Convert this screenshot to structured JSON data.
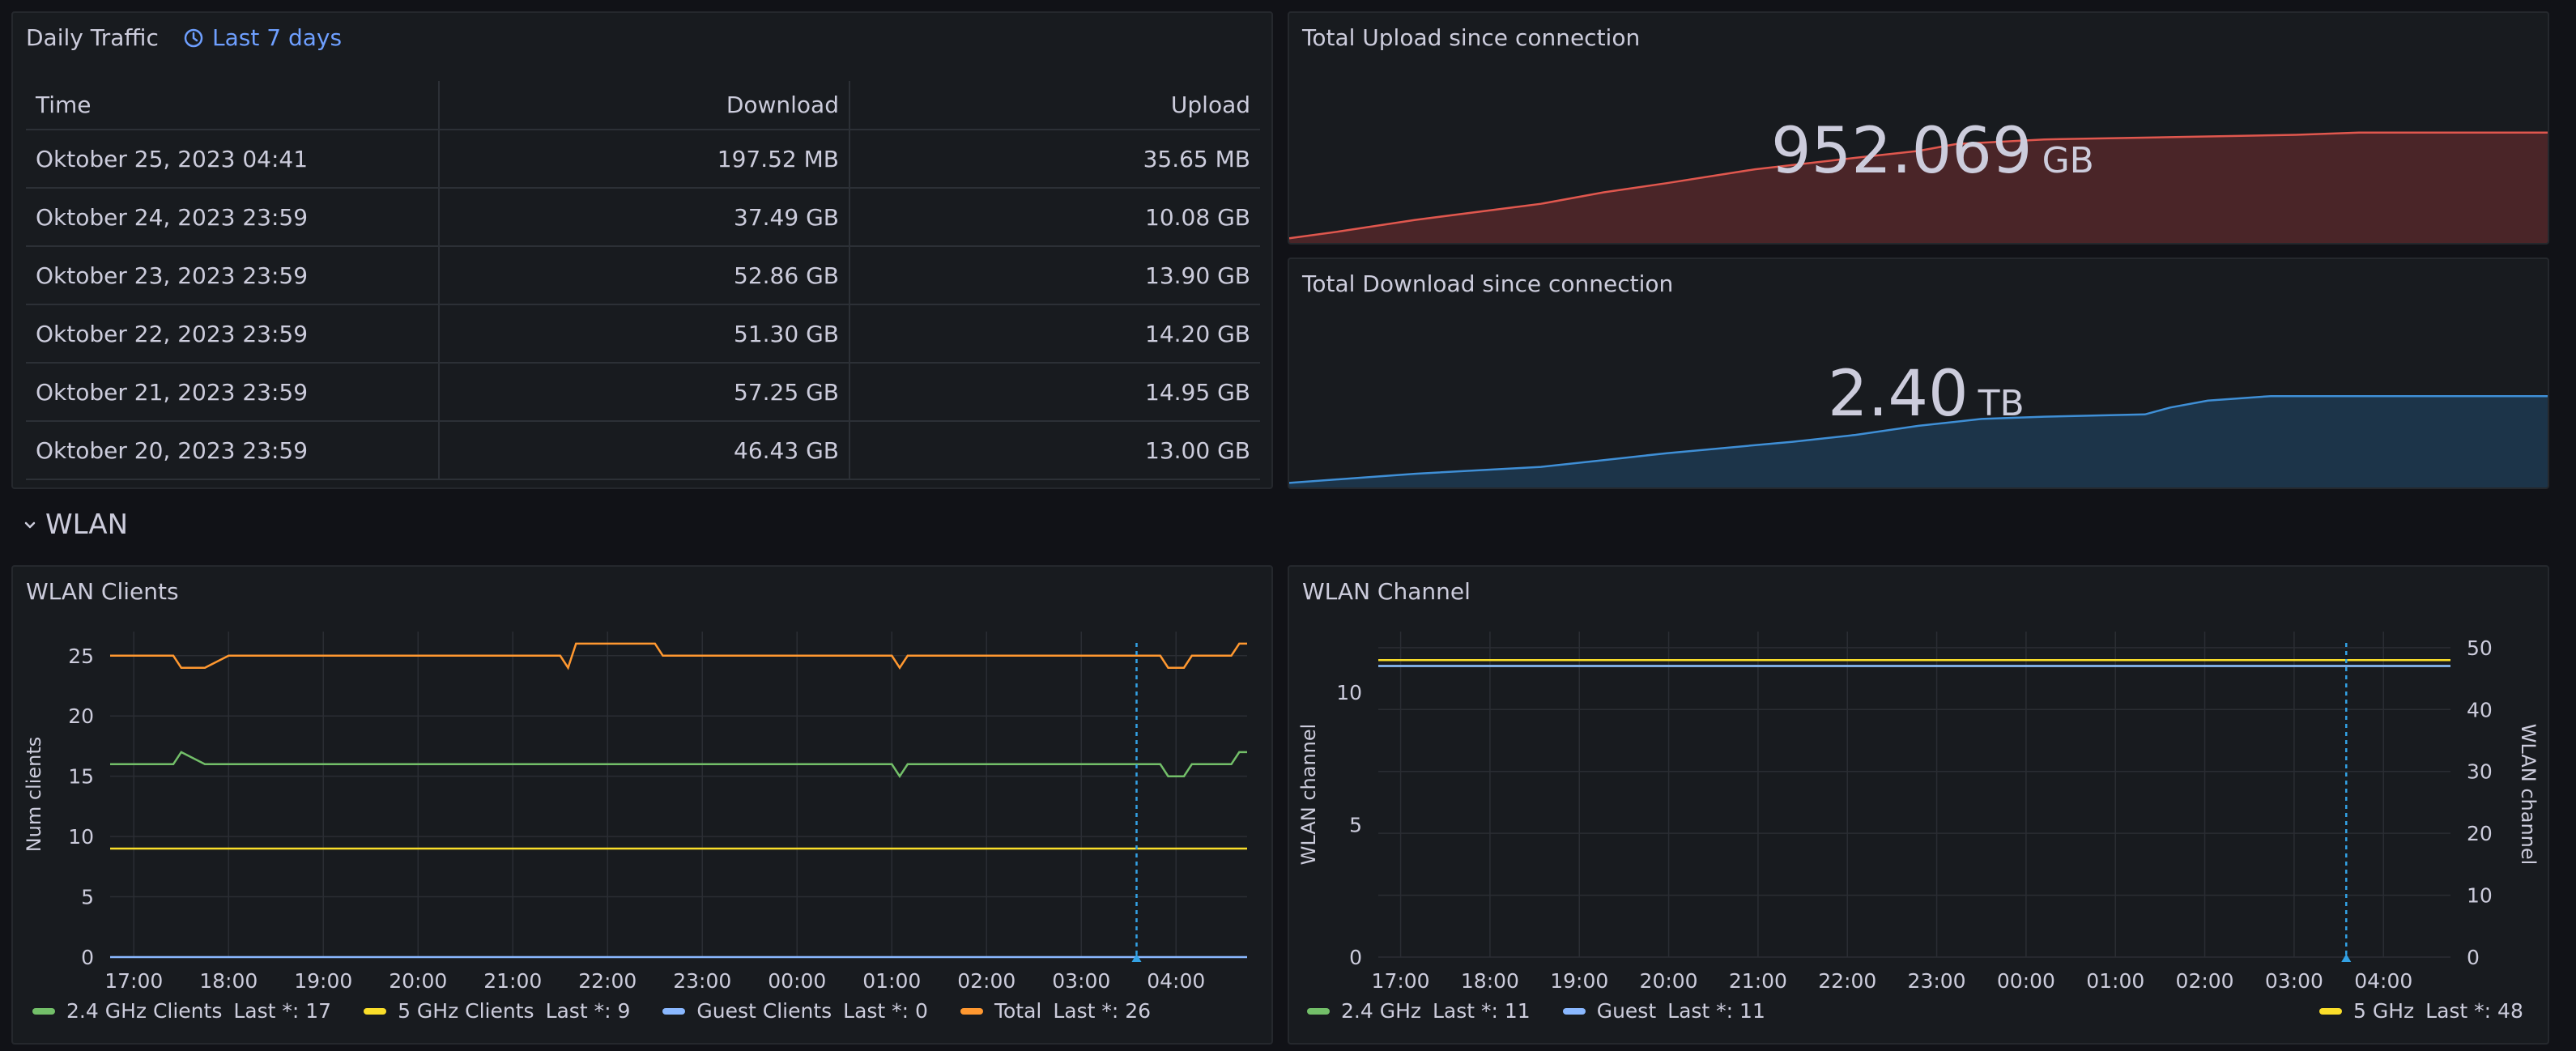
{
  "daily_traffic": {
    "title": "Daily Traffic",
    "time_range": "Last 7 days",
    "columns": [
      "Time",
      "Download",
      "Upload"
    ],
    "rows": [
      [
        "Oktober 25, 2023 04:41",
        "197.52 MB",
        "35.65 MB"
      ],
      [
        "Oktober 24, 2023 23:59",
        "37.49 GB",
        "10.08 GB"
      ],
      [
        "Oktober 23, 2023 23:59",
        "52.86 GB",
        "13.90 GB"
      ],
      [
        "Oktober 22, 2023 23:59",
        "51.30 GB",
        "14.20 GB"
      ],
      [
        "Oktober 21, 2023 23:59",
        "57.25 GB",
        "14.95 GB"
      ],
      [
        "Oktober 20, 2023 23:59",
        "46.43 GB",
        "13.00 GB"
      ]
    ]
  },
  "total_upload": {
    "title": "Total Upload since connection",
    "value": "952.069",
    "unit": "GB",
    "color": "#e0574e",
    "fill": "#4a2528"
  },
  "total_download": {
    "title": "Total Download since connection",
    "value": "2.40",
    "unit": "TB",
    "color": "#3f8fd6",
    "fill": "#1c3449"
  },
  "row": {
    "title": "WLAN"
  },
  "wlan_clients": {
    "title": "WLAN Clients",
    "ylabel": "Num clients",
    "y_ticks": [
      "0",
      "5",
      "10",
      "15",
      "20",
      "25"
    ],
    "x_ticks": [
      "17:00",
      "18:00",
      "19:00",
      "20:00",
      "21:00",
      "22:00",
      "23:00",
      "00:00",
      "01:00",
      "02:00",
      "03:00",
      "04:00"
    ],
    "legend": [
      {
        "label": "2.4 GHz Clients",
        "last": "Last *: 17",
        "color": "#73bf69"
      },
      {
        "label": "5 GHz Clients",
        "last": "Last *: 9",
        "color": "#fade2a"
      },
      {
        "label": "Guest Clients",
        "last": "Last *: 0",
        "color": "#8ab8ff"
      },
      {
        "label": "Total",
        "last": "Last *: 26",
        "color": "#ff9830"
      }
    ]
  },
  "wlan_channel": {
    "title": "WLAN Channel",
    "ylabel_left": "WLAN channel",
    "ylabel_right": "WLAN channel",
    "y_ticks_left": [
      "0",
      "5",
      "10"
    ],
    "y_ticks_right": [
      "0",
      "10",
      "20",
      "30",
      "40",
      "50"
    ],
    "x_ticks": [
      "17:00",
      "18:00",
      "19:00",
      "20:00",
      "21:00",
      "22:00",
      "23:00",
      "00:00",
      "01:00",
      "02:00",
      "03:00",
      "04:00"
    ],
    "legend_left": [
      {
        "label": "2.4 GHz",
        "last": "Last *: 11",
        "color": "#73bf69"
      },
      {
        "label": "Guest",
        "last": "Last *: 11",
        "color": "#8ab8ff"
      }
    ],
    "legend_right": [
      {
        "label": "5 GHz",
        "last": "Last *: 48",
        "color": "#fade2a"
      }
    ]
  },
  "chart_data": [
    {
      "type": "line",
      "title": "WLAN Clients",
      "ylabel": "Num clients",
      "ylim": [
        0,
        27
      ],
      "x": [
        "16:45",
        "17:00",
        "17:25",
        "17:30",
        "17:45",
        "18:00",
        "21:00",
        "21:30",
        "21:35",
        "21:40",
        "22:30",
        "22:35",
        "01:00",
        "01:05",
        "01:10",
        "03:00",
        "03:30",
        "03:50",
        "03:55",
        "04:05",
        "04:10",
        "04:35",
        "04:40",
        "04:45"
      ],
      "series": [
        {
          "name": "Total",
          "values": [
            25,
            25,
            25,
            24,
            24,
            25,
            25,
            25,
            24,
            26,
            26,
            25,
            25,
            24,
            25,
            25,
            25,
            25,
            24,
            24,
            25,
            25,
            26,
            26
          ]
        },
        {
          "name": "2.4 GHz Clients",
          "values": [
            16,
            16,
            16,
            17,
            16,
            16,
            16,
            16,
            16,
            16,
            16,
            16,
            16,
            15,
            16,
            16,
            16,
            16,
            15,
            15,
            16,
            16,
            17,
            17
          ]
        },
        {
          "name": "5 GHz Clients",
          "values": [
            9,
            9,
            9,
            9,
            9,
            9,
            9,
            9,
            9,
            9,
            9,
            9,
            9,
            9,
            9,
            9,
            9,
            9,
            9,
            9,
            9,
            9,
            9,
            9
          ]
        },
        {
          "name": "Guest Clients",
          "values": [
            0,
            0,
            0,
            0,
            0,
            0,
            0,
            0,
            0,
            0,
            0,
            0,
            0,
            0,
            0,
            0,
            0,
            0,
            0,
            0,
            0,
            0,
            0,
            0
          ]
        }
      ]
    },
    {
      "type": "line",
      "title": "WLAN Channel",
      "ylabel": "WLAN channel",
      "ylim_left": [
        0,
        12.3
      ],
      "ylim_right": [
        0,
        52.6
      ],
      "x": [
        "16:45",
        "04:45"
      ],
      "series": [
        {
          "name": "2.4 GHz",
          "axis": "left",
          "values": [
            11,
            11
          ]
        },
        {
          "name": "Guest",
          "axis": "left",
          "values": [
            11,
            11
          ]
        },
        {
          "name": "5 GHz",
          "axis": "right",
          "values": [
            48,
            48
          ]
        }
      ]
    }
  ]
}
